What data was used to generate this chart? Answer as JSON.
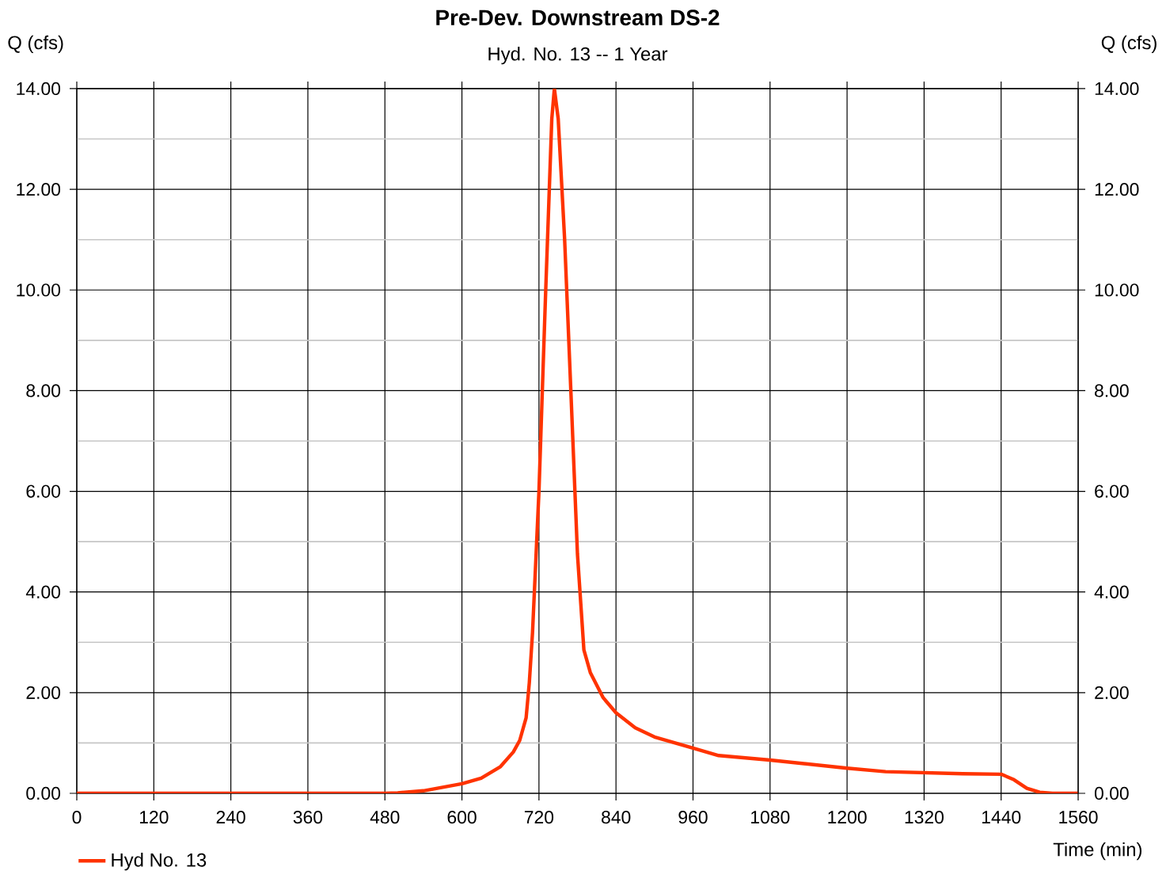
{
  "chart_data": {
    "type": "line",
    "title": "Pre-Dev. Downstream DS-2",
    "subtitle": "Hyd. No. 13 -- 1 Year",
    "xlabel": "Time (min)",
    "ylabel": "Q (cfs)",
    "y2label": "Q (cfs)",
    "xlim": [
      0,
      1560
    ],
    "xticks": [
      0,
      120,
      240,
      360,
      480,
      600,
      720,
      840,
      960,
      1080,
      1200,
      1320,
      1440,
      1560
    ],
    "ylim": [
      0,
      14
    ],
    "yticks": [
      {
        "value": 0,
        "label": "0.00"
      },
      {
        "value": 1,
        "label": null
      },
      {
        "value": 2,
        "label": "2.00"
      },
      {
        "value": 3,
        "label": null
      },
      {
        "value": 4,
        "label": "4.00"
      },
      {
        "value": 5,
        "label": null
      },
      {
        "value": 6,
        "label": "6.00"
      },
      {
        "value": 7,
        "label": null
      },
      {
        "value": 8,
        "label": "8.00"
      },
      {
        "value": 9,
        "label": null
      },
      {
        "value": 10,
        "label": "10.00"
      },
      {
        "value": 11,
        "label": null
      },
      {
        "value": 12,
        "label": "12.00"
      },
      {
        "value": 13,
        "label": null
      },
      {
        "value": 14,
        "label": "14.00"
      }
    ],
    "y2lim": [
      0,
      14
    ],
    "y2ticks": [
      {
        "value": 0,
        "label": "0.00"
      },
      {
        "value": 2,
        "label": "2.00"
      },
      {
        "value": 4,
        "label": "4.00"
      },
      {
        "value": 6,
        "label": "6.00"
      },
      {
        "value": 8,
        "label": "8.00"
      },
      {
        "value": 10,
        "label": "10.00"
      },
      {
        "value": 12,
        "label": "12.00"
      },
      {
        "value": 14,
        "label": "14.00"
      }
    ],
    "grid": true,
    "legend": "bottom left",
    "line_style": "solid",
    "marker": "none",
    "series": [
      {
        "name": "Hyd No. 13",
        "color": "#ff3300",
        "x": [
          0,
          120,
          240,
          360,
          480,
          500,
          540,
          600,
          630,
          660,
          680,
          690,
          700,
          705,
          710,
          720,
          730,
          740,
          744,
          750,
          760,
          770,
          780,
          790,
          800,
          820,
          840,
          870,
          900,
          960,
          1000,
          1080,
          1200,
          1260,
          1320,
          1380,
          1440,
          1460,
          1480,
          1500,
          1520,
          1560
        ],
        "values": [
          0,
          0,
          0,
          0,
          0,
          0.01,
          0.05,
          0.19,
          0.3,
          0.53,
          0.82,
          1.05,
          1.5,
          2.2,
          3.2,
          6.0,
          9.8,
          13.4,
          14.0,
          13.4,
          11.0,
          7.9,
          4.75,
          2.85,
          2.4,
          1.9,
          1.6,
          1.3,
          1.12,
          0.9,
          0.75,
          0.66,
          0.5,
          0.43,
          0.41,
          0.39,
          0.38,
          0.27,
          0.1,
          0.02,
          0,
          0
        ]
      }
    ]
  }
}
